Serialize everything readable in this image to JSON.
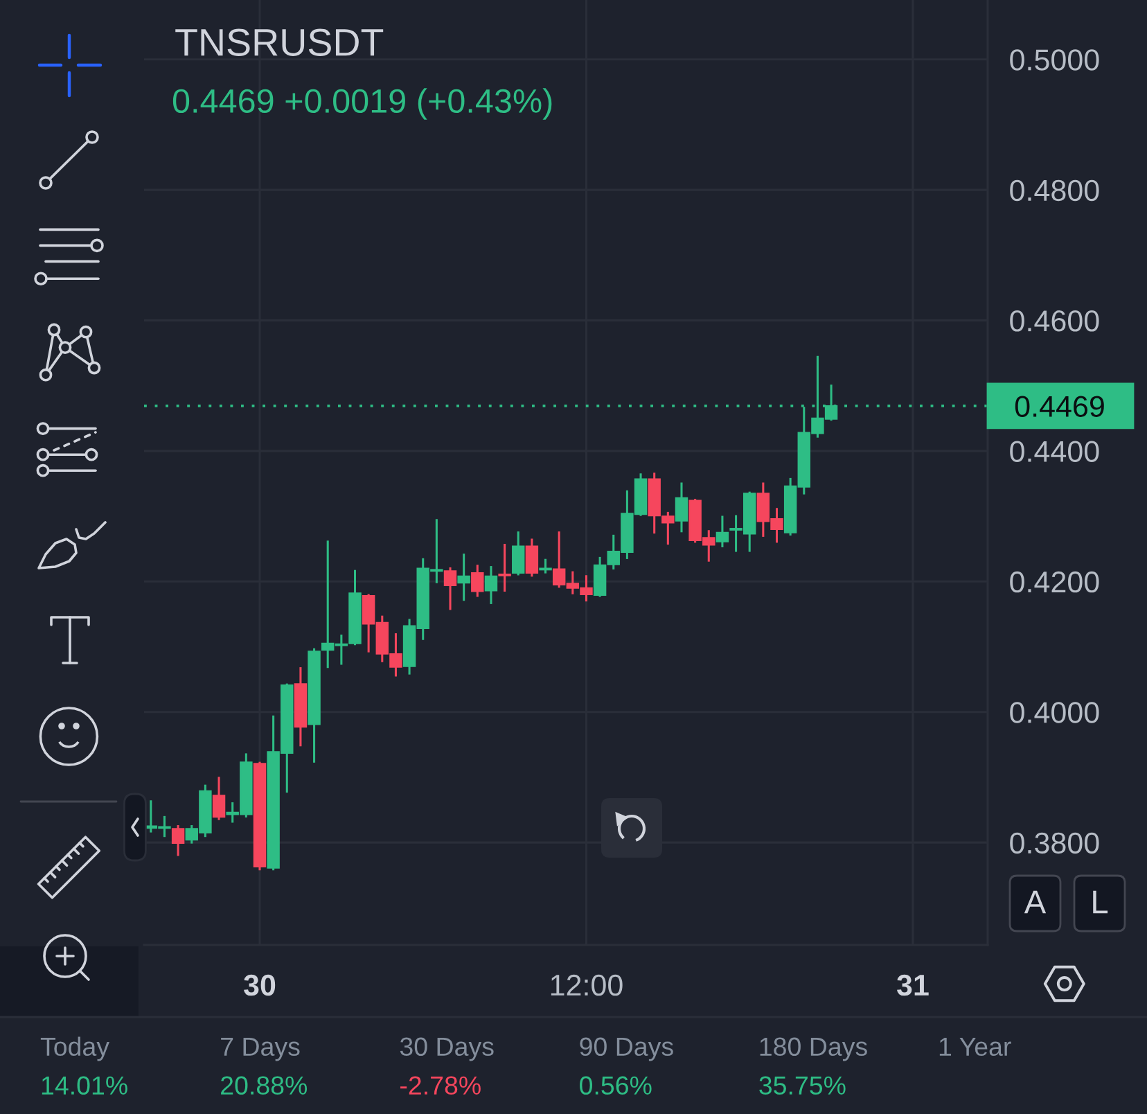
{
  "chart_data": {
    "type": "candlestick",
    "title": "TNSRUSDT",
    "subtitle": "0.4469 +0.0019 (+0.43%)",
    "categories": [
      null,
      null,
      null,
      null,
      null,
      null,
      null,
      null,
      "30",
      null,
      null,
      null,
      null,
      null,
      null,
      null,
      null,
      null,
      null,
      null,
      null,
      null,
      null,
      null,
      null,
      null,
      null,
      null,
      null,
      null,
      null,
      null,
      "12:00",
      null,
      null,
      null,
      null,
      null,
      null,
      null,
      null,
      null,
      null,
      null,
      null,
      null,
      null,
      null,
      null,
      null,
      null,
      null,
      null,
      null,
      null,
      null,
      "31",
      null,
      null,
      null,
      null,
      null
    ],
    "ohlc": [
      [
        0.3822,
        0.3863,
        0.3817,
        0.3825
      ],
      [
        0.3822,
        0.3839,
        0.381,
        0.3824
      ],
      [
        0.3821,
        0.3825,
        0.3781,
        0.3799
      ],
      [
        0.3804,
        0.3825,
        0.38,
        0.3821
      ],
      [
        0.3815,
        0.3887,
        0.381,
        0.3879
      ],
      [
        0.3872,
        0.3899,
        0.3836,
        0.3839
      ],
      [
        0.3843,
        0.386,
        0.3832,
        0.3846
      ],
      [
        0.3843,
        0.3935,
        0.384,
        0.3923
      ],
      [
        0.3921,
        0.3922,
        0.3759,
        0.3763
      ],
      [
        0.3761,
        0.3993,
        0.3759,
        0.3939
      ],
      [
        0.3937,
        0.4042,
        0.3878,
        0.4041
      ],
      [
        0.4043,
        0.4067,
        0.3949,
        0.3977
      ],
      [
        0.3981,
        0.4096,
        0.3924,
        0.4093
      ],
      [
        0.4095,
        0.4261,
        0.4069,
        0.4105
      ],
      [
        0.4102,
        0.4117,
        0.4074,
        0.4104
      ],
      [
        0.4105,
        0.4216,
        0.4104,
        0.4182
      ],
      [
        0.4178,
        0.4179,
        0.4093,
        0.4135
      ],
      [
        0.4137,
        0.4146,
        0.4078,
        0.4089
      ],
      [
        0.4089,
        0.4119,
        0.4056,
        0.4069
      ],
      [
        0.407,
        0.4141,
        0.4059,
        0.4132
      ],
      [
        0.4128,
        0.4234,
        0.4112,
        0.422
      ],
      [
        0.4216,
        0.4294,
        0.4199,
        0.4218
      ],
      [
        0.4216,
        0.422,
        0.4158,
        0.4194
      ],
      [
        0.4198,
        0.4241,
        0.4172,
        0.4208
      ],
      [
        0.4213,
        0.4224,
        0.4178,
        0.4185
      ],
      [
        0.4186,
        0.4222,
        0.4167,
        0.4208
      ],
      [
        0.4211,
        0.4256,
        0.4186,
        0.4209
      ],
      [
        0.4213,
        0.4275,
        0.4211,
        0.4254
      ],
      [
        0.4254,
        0.4264,
        0.4209,
        0.4213
      ],
      [
        0.4218,
        0.4233,
        0.4214,
        0.422
      ],
      [
        0.4219,
        0.4275,
        0.4192,
        0.4195
      ],
      [
        0.4197,
        0.4214,
        0.4182,
        0.419
      ],
      [
        0.419,
        0.4208,
        0.4171,
        0.418
      ],
      [
        0.4179,
        0.4236,
        0.4178,
        0.4225
      ],
      [
        0.4226,
        0.427,
        0.422,
        0.4246
      ],
      [
        0.4245,
        0.4338,
        0.4236,
        0.4304
      ],
      [
        0.4303,
        0.4364,
        0.4302,
        0.4357
      ],
      [
        0.4357,
        0.4365,
        0.4275,
        0.4301
      ],
      [
        0.43,
        0.4305,
        0.4258,
        0.429
      ],
      [
        0.4293,
        0.435,
        0.4277,
        0.4328
      ],
      [
        0.4324,
        0.4325,
        0.4261,
        0.4263
      ],
      [
        0.4267,
        0.4277,
        0.4232,
        0.4256
      ],
      [
        0.4261,
        0.4299,
        0.4254,
        0.4275
      ],
      [
        0.4279,
        0.43,
        0.4247,
        0.4281
      ],
      [
        0.4273,
        0.4336,
        0.4247,
        0.4335
      ],
      [
        0.4335,
        0.435,
        0.427,
        0.4292
      ],
      [
        0.4296,
        0.4311,
        0.4261,
        0.428
      ],
      [
        0.4275,
        0.4357,
        0.4272,
        0.4346
      ],
      [
        0.4345,
        0.4466,
        0.4335,
        0.4428
      ],
      [
        0.4427,
        0.4544,
        0.4422,
        0.445
      ],
      [
        0.4449,
        0.45,
        0.4448,
        0.4469
      ],
      null,
      null,
      null,
      null,
      null,
      null,
      null,
      null,
      null,
      null,
      null
    ],
    "colors": [
      "#2ebd85",
      "#2ebd85",
      "#f6465d",
      "#2ebd85",
      "#2ebd85",
      "#f6465d",
      "#2ebd85",
      "#2ebd85",
      "#f6465d",
      "#2ebd85",
      "#2ebd85",
      "#f6465d",
      "#2ebd85",
      "#2ebd85",
      "#2ebd85",
      "#2ebd85",
      "#f6465d",
      "#f6465d",
      "#f6465d",
      "#2ebd85",
      "#2ebd85",
      "#2ebd85",
      "#f6465d",
      "#2ebd85",
      "#f6465d",
      "#2ebd85",
      "#f6465d",
      "#2ebd85",
      "#f6465d",
      "#2ebd85",
      "#f6465d",
      "#f6465d",
      "#f6465d",
      "#2ebd85",
      "#2ebd85",
      "#2ebd85",
      "#2ebd85",
      "#f6465d",
      "#f6465d",
      "#2ebd85",
      "#f6465d",
      "#f6465d",
      "#2ebd85",
      "#2ebd85",
      "#2ebd85",
      "#f6465d",
      "#f6465d",
      "#2ebd85",
      "#2ebd85",
      "#2ebd85",
      "#2ebd85",
      null,
      null,
      null,
      null,
      null,
      null,
      null,
      null,
      null,
      null,
      null
    ],
    "ylim": [
      0.3643,
      0.5091
    ],
    "yticks": [
      {
        "value": 0.38,
        "label": "0.3800"
      },
      {
        "value": 0.4,
        "label": "0.4000"
      },
      {
        "value": 0.42,
        "label": "0.4200"
      },
      {
        "value": 0.44,
        "label": "0.4400"
      },
      {
        "value": 0.46,
        "label": "0.4600"
      },
      {
        "value": 0.48,
        "label": "0.4800"
      },
      {
        "value": 0.5,
        "label": "0.5000"
      }
    ],
    "grid": true,
    "ref_lines": [
      {
        "axis": "y",
        "value": 0.4469,
        "label": "0.4469",
        "color": "#2ebd85",
        "line_style": "dotted"
      }
    ],
    "annotations": [
      "Today",
      "14.01%",
      "7 Days",
      "20.88%",
      "30 Days",
      "-2.78%",
      "90 Days",
      "0.56%",
      "180 Days",
      "35.75%",
      "1 Year",
      "A",
      "L"
    ]
  }
}
